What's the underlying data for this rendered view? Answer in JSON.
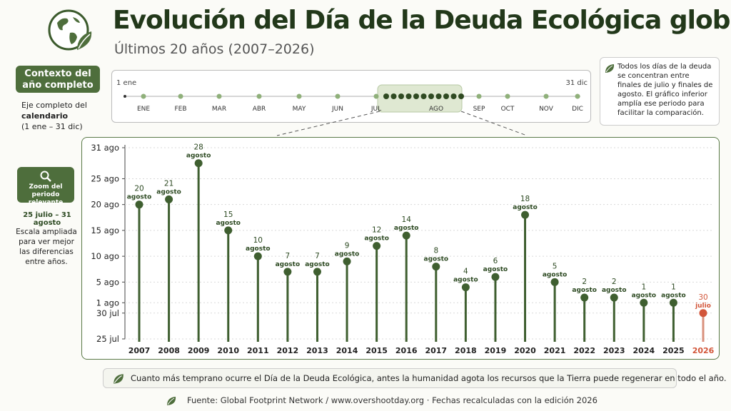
{
  "header": {
    "title": "Evolución del Día de la Deuda Ecológica global",
    "subtitle": "Últimos 20 años (2007–2026)"
  },
  "sidebar": {
    "context_label": "Contexto del año completo",
    "context_desc_a": "Eje completo del ",
    "context_desc_b": "calendario",
    "context_desc_c": "(1 ene – 31 dic)",
    "zoom_label": "Zoom del periodo relevante",
    "zoom_range": "25 julio – 31 agosto",
    "zoom_desc": "Escala ampliada para ver mejor las diferencias entre años."
  },
  "timeline": {
    "start_label": "1 ene",
    "end_label": "31 dic",
    "months": [
      "ENE",
      "FEB",
      "MAR",
      "ABR",
      "MAY",
      "JUN",
      "JUL",
      "AGO",
      "SEP",
      "OCT",
      "NOV",
      "DIC"
    ]
  },
  "note": "Todos los días de la deuda se concentran entre finales de julio y finales de agosto. El gráfico inferior amplía ese periodo para facilitar la comparación.",
  "footer": {
    "message": "Cuanto más temprano ocurre el Día de la Deuda Ecológica, antes la humanidad agota los recursos que la Tierra puede regenerar en todo el año.",
    "source": "Fuente: Global Footprint Network / www.overshootday.org  ·  Fechas recalculadas con la edición 2026"
  },
  "colors": {
    "accent": "#4e6e3c",
    "highlight": "#d2563a",
    "stem": "#3f5f30"
  },
  "chart_data": {
    "type": "lollipop",
    "title": "",
    "xlabel": "",
    "ylabel": "",
    "ylim": [
      "25 jul",
      "31 ago"
    ],
    "y_ticks": [
      {
        "label": "31 ago",
        "day": 31
      },
      {
        "label": "25 ago",
        "day": 25
      },
      {
        "label": "20 ago",
        "day": 20
      },
      {
        "label": "15 ago",
        "day": 15
      },
      {
        "label": "10 ago",
        "day": 10
      },
      {
        "label": "5 ago",
        "day": 5
      },
      {
        "label": "1 ago",
        "day": 1
      },
      {
        "label": "30 jul",
        "day": -1
      },
      {
        "label": "25 jul",
        "day": -6
      }
    ],
    "categories": [
      "2007",
      "2008",
      "2009",
      "2010",
      "2011",
      "2012",
      "2013",
      "2014",
      "2015",
      "2016",
      "2017",
      "2018",
      "2019",
      "2020",
      "2021",
      "2022",
      "2023",
      "2024",
      "2025",
      "2026"
    ],
    "values": [
      20,
      21,
      28,
      15,
      10,
      7,
      7,
      9,
      12,
      14,
      8,
      4,
      6,
      18,
      5,
      2,
      2,
      1,
      1,
      -1
    ],
    "labels": [
      [
        "20",
        "agosto"
      ],
      [
        "21",
        "agosto"
      ],
      [
        "28",
        "agosto"
      ],
      [
        "15",
        "agosto"
      ],
      [
        "10",
        "agosto"
      ],
      [
        "7",
        "agosto"
      ],
      [
        "7",
        "agosto"
      ],
      [
        "9",
        "agosto"
      ],
      [
        "12",
        "agosto"
      ],
      [
        "14",
        "agosto"
      ],
      [
        "8",
        "agosto"
      ],
      [
        "4",
        "agosto"
      ],
      [
        "6",
        "agosto"
      ],
      [
        "18",
        "agosto"
      ],
      [
        "5",
        "agosto"
      ],
      [
        "2",
        "agosto"
      ],
      [
        "2",
        "agosto"
      ],
      [
        "1",
        "agosto"
      ],
      [
        "1",
        "agosto"
      ],
      [
        "30",
        "julio"
      ]
    ],
    "highlight_index": 19
  }
}
